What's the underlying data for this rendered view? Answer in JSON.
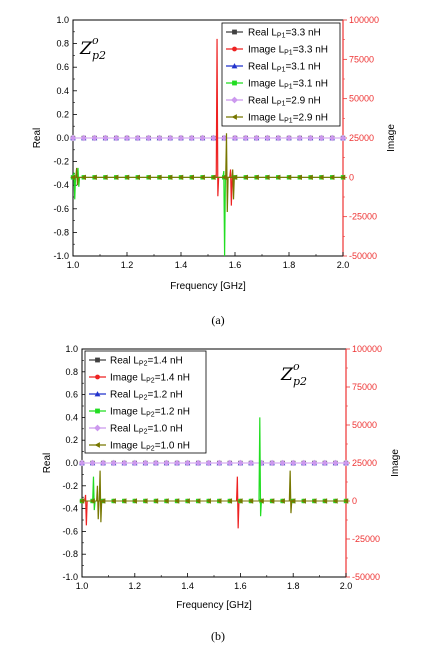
{
  "charts": [
    {
      "id": "a",
      "caption": "(a)",
      "annotation": {
        "base": "Z",
        "sup": "o",
        "sub": "p2"
      },
      "xlabel": "Frequency [GHz]",
      "ylabel_left": "Real",
      "ylabel_right": "Image",
      "x_ticks": [
        "1.0",
        "1.2",
        "1.4",
        "1.6",
        "1.8",
        "2.0"
      ],
      "left_ticks": [
        "1.0",
        "0.8",
        "0.6",
        "0.4",
        "0.2",
        "0.0",
        "-0.2",
        "-0.4",
        "-0.6",
        "-0.8",
        "-1.0"
      ],
      "right_ticks": [
        "100000",
        "75000",
        "50000",
        "25000",
        "0",
        "-25000",
        "-50000"
      ],
      "legend": [
        {
          "pre": "Real L",
          "sub": "P1",
          "post": "=3.3 nH"
        },
        {
          "pre": "Image L",
          "sub": "P1",
          "post": "=3.3 nH"
        },
        {
          "pre": "Real L",
          "sub": "P1",
          "post": "=3.1 nH"
        },
        {
          "pre": "Image L",
          "sub": "P1",
          "post": "=3.1 nH"
        },
        {
          "pre": "Real L",
          "sub": "P1",
          "post": "=2.9 nH"
        },
        {
          "pre": "Image L",
          "sub": "P1",
          "post": "=2.9 nH"
        }
      ]
    },
    {
      "id": "b",
      "caption": "(b)",
      "annotation": {
        "base": "Z",
        "sup": "o",
        "sub": "p2"
      },
      "xlabel": "Frequency [GHz]",
      "ylabel_left": "Real",
      "ylabel_right": "Image",
      "x_ticks": [
        "1.0",
        "1.2",
        "1.4",
        "1.6",
        "1.8",
        "2.0"
      ],
      "left_ticks": [
        "1.0",
        "0.8",
        "0.6",
        "0.4",
        "0.2",
        "0.0",
        "-0.2",
        "-0.4",
        "-0.6",
        "-0.8",
        "-1.0"
      ],
      "right_ticks": [
        "100000",
        "75000",
        "50000",
        "25000",
        "0",
        "-25000",
        "-50000"
      ],
      "legend": [
        {
          "pre": "Real L",
          "sub": "P2",
          "post": "=1.4 nH"
        },
        {
          "pre": "Image L",
          "sub": "P2",
          "post": "=1.4 nH"
        },
        {
          "pre": "Real L",
          "sub": "P2",
          "post": "=1.2 nH"
        },
        {
          "pre": "Image L",
          "sub": "P2",
          "post": "=1.2 nH"
        },
        {
          "pre": "Real L",
          "sub": "P2",
          "post": "=1.0 nH"
        },
        {
          "pre": "Image L",
          "sub": "P2",
          "post": "=1.0 nH"
        }
      ]
    }
  ],
  "colors": {
    "real_black": "#404040",
    "image_red": "#ee2222",
    "real_blue": "#2233cc",
    "image_green": "#22dd22",
    "real_violet": "#cc99ee",
    "image_olive": "#777700",
    "right_axis": "#ee3333"
  },
  "chart_data": [
    {
      "type": "line",
      "xlim": [
        1.0,
        2.0
      ],
      "ylim_left": [
        -1.0,
        1.0
      ],
      "ylim_right": [
        -50000,
        100000
      ],
      "x_sample": [
        1.0,
        1.04,
        1.08,
        1.12,
        1.16,
        1.2,
        1.24,
        1.28,
        1.32,
        1.36,
        1.4,
        1.44,
        1.48,
        1.52,
        1.56,
        1.6,
        1.64,
        1.68,
        1.72,
        1.76,
        1.8,
        1.84,
        1.88,
        1.92,
        1.96,
        2.0
      ],
      "real_level": 0.0,
      "image_level": 0,
      "series": [
        {
          "name": "Real LP1=3.3 nH",
          "axis": "left",
          "color": "#404040",
          "marker": "square",
          "baseline": 0.0,
          "spikes": []
        },
        {
          "name": "Image LP1=3.3 nH",
          "axis": "right",
          "color": "#ee2222",
          "marker": "circle",
          "baseline": 0,
          "spikes": [
            {
              "x": 1.535,
              "pos": 88000,
              "neg": -12000
            },
            {
              "x": 1.585,
              "pos": 5000,
              "neg": -18000
            }
          ]
        },
        {
          "name": "Real LP1=3.1 nH",
          "axis": "left",
          "color": "#2233cc",
          "marker": "triangle-up",
          "baseline": 0.0,
          "spikes": []
        },
        {
          "name": "Image LP1=3.1 nH",
          "axis": "right",
          "color": "#22dd22",
          "marker": "square",
          "baseline": 0,
          "spikes": [
            {
              "x": 1.005,
              "pos": 3000,
              "neg": -14000
            },
            {
              "x": 1.02,
              "pos": 6000,
              "neg": -6000
            },
            {
              "x": 1.56,
              "pos": 4000,
              "neg": -50000
            }
          ]
        },
        {
          "name": "Real LP1=2.9 nH",
          "axis": "left",
          "color": "#cc99ee",
          "marker": "diamond",
          "baseline": 0.0,
          "spikes": []
        },
        {
          "name": "Image LP1=2.9 nH",
          "axis": "right",
          "color": "#777700",
          "marker": "triangle-left",
          "baseline": 0,
          "spikes": [
            {
              "x": 1.015,
              "pos": 6000,
              "neg": -5000
            },
            {
              "x": 1.57,
              "pos": 28000,
              "neg": -22000
            },
            {
              "x": 1.593,
              "pos": 5000,
              "neg": -14000
            }
          ]
        }
      ]
    },
    {
      "type": "line",
      "xlim": [
        1.0,
        2.0
      ],
      "ylim_left": [
        -1.0,
        1.0
      ],
      "ylim_right": [
        -50000,
        100000
      ],
      "x_sample": [
        1.0,
        1.04,
        1.08,
        1.12,
        1.16,
        1.2,
        1.24,
        1.28,
        1.32,
        1.36,
        1.4,
        1.44,
        1.48,
        1.52,
        1.56,
        1.6,
        1.64,
        1.68,
        1.72,
        1.76,
        1.8,
        1.84,
        1.88,
        1.92,
        1.96,
        2.0
      ],
      "real_level": 0.0,
      "image_level": 0,
      "series": [
        {
          "name": "Real LP2=1.4 nH",
          "axis": "left",
          "color": "#404040",
          "marker": "square",
          "baseline": 0.0,
          "spikes": []
        },
        {
          "name": "Image LP2=1.4 nH",
          "axis": "right",
          "color": "#ee2222",
          "marker": "circle",
          "baseline": 0,
          "spikes": [
            {
              "x": 1.015,
              "pos": 4000,
              "neg": -16000
            },
            {
              "x": 1.59,
              "pos": 16000,
              "neg": -18000
            }
          ]
        },
        {
          "name": "Real LP2=1.2 nH",
          "axis": "left",
          "color": "#2233cc",
          "marker": "triangle-up",
          "baseline": 0.0,
          "spikes": []
        },
        {
          "name": "Image LP2=1.2 nH",
          "axis": "right",
          "color": "#22dd22",
          "marker": "square",
          "baseline": 0,
          "spikes": [
            {
              "x": 1.045,
              "pos": 16000,
              "neg": -6000
            },
            {
              "x": 1.675,
              "pos": 55000,
              "neg": -10000
            }
          ]
        },
        {
          "name": "Real LP2=1.0 nH",
          "axis": "left",
          "color": "#cc99ee",
          "marker": "diamond",
          "baseline": 0.0,
          "spikes": []
        },
        {
          "name": "Image LP2=1.0 nH",
          "axis": "right",
          "color": "#777700",
          "marker": "triangle-left",
          "baseline": 0,
          "spikes": [
            {
              "x": 1.06,
              "pos": 10000,
              "neg": -12000
            },
            {
              "x": 1.07,
              "pos": 20000,
              "neg": -14000
            },
            {
              "x": 1.79,
              "pos": 20000,
              "neg": -8000
            }
          ]
        }
      ]
    }
  ]
}
